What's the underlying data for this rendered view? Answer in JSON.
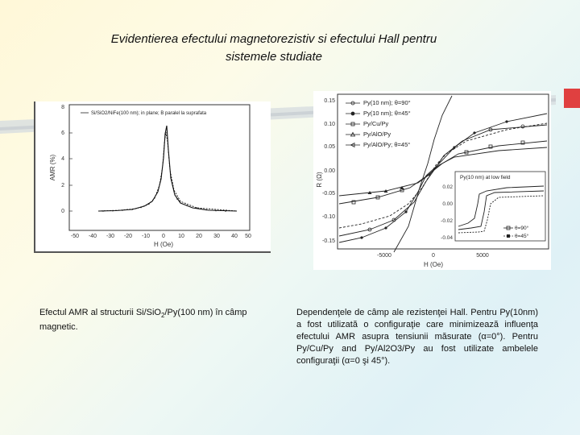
{
  "slide": {
    "title_line1": "Evidentierea efectului magnetorezistiv si efectului Hall pentru",
    "title_line2": "sistemele studiate"
  },
  "figure_left": {
    "legend": "Si/SiO2/NiFe(100 nm); in plane; B paralel la suprafata",
    "ylabel": "AMR (%)",
    "xlabel": "H (Oe)",
    "yticks": [
      "0",
      "2",
      "4",
      "6",
      "8"
    ],
    "xticks": [
      "-50",
      "-40",
      "-30",
      "-20",
      "-10",
      "0",
      "10",
      "20",
      "30",
      "40",
      "50"
    ]
  },
  "figure_right": {
    "ylabel": "R (Ω)",
    "xlabel": "H (Oe)",
    "yticks": [
      "0.15",
      "0.10",
      "0.05",
      "0.00",
      "-0.05",
      "-0.10",
      "-0.15"
    ],
    "xticks": [
      "-5000",
      "0",
      "5000"
    ],
    "legend": [
      "Py(10 nm); θ=90°",
      "Py(10 nm); θ=45°",
      "Py/Cu/Py",
      "Py/AlO/Py",
      "Py/AlO/Py; θ=45°"
    ],
    "inset": {
      "title": "Py(10 nm) at low field",
      "yticks": [
        "0.02",
        "0.00",
        "-0.02",
        "-0.04"
      ],
      "legend": [
        "θ=90°",
        "θ=45°"
      ]
    }
  },
  "caption_left": {
    "text_a": "Efectul AMR al structurii Si/SiO",
    "sub_a": "2",
    "text_b": "/Py(100 nm) în câmp magnetic."
  },
  "caption_right": {
    "text": "Dependenţele de câmp ale rezistenţei Hall. Pentru Py(10nm) a fost utilizată o configuraţie care minimizează influenţa efectului AMR asupra tensiunii măsurate (α=0°). Pentru Py/Cu/Py and Py/Al2O3/Py au fost utilizate ambelele configuraţii (α=0 şi 45°)."
  }
}
